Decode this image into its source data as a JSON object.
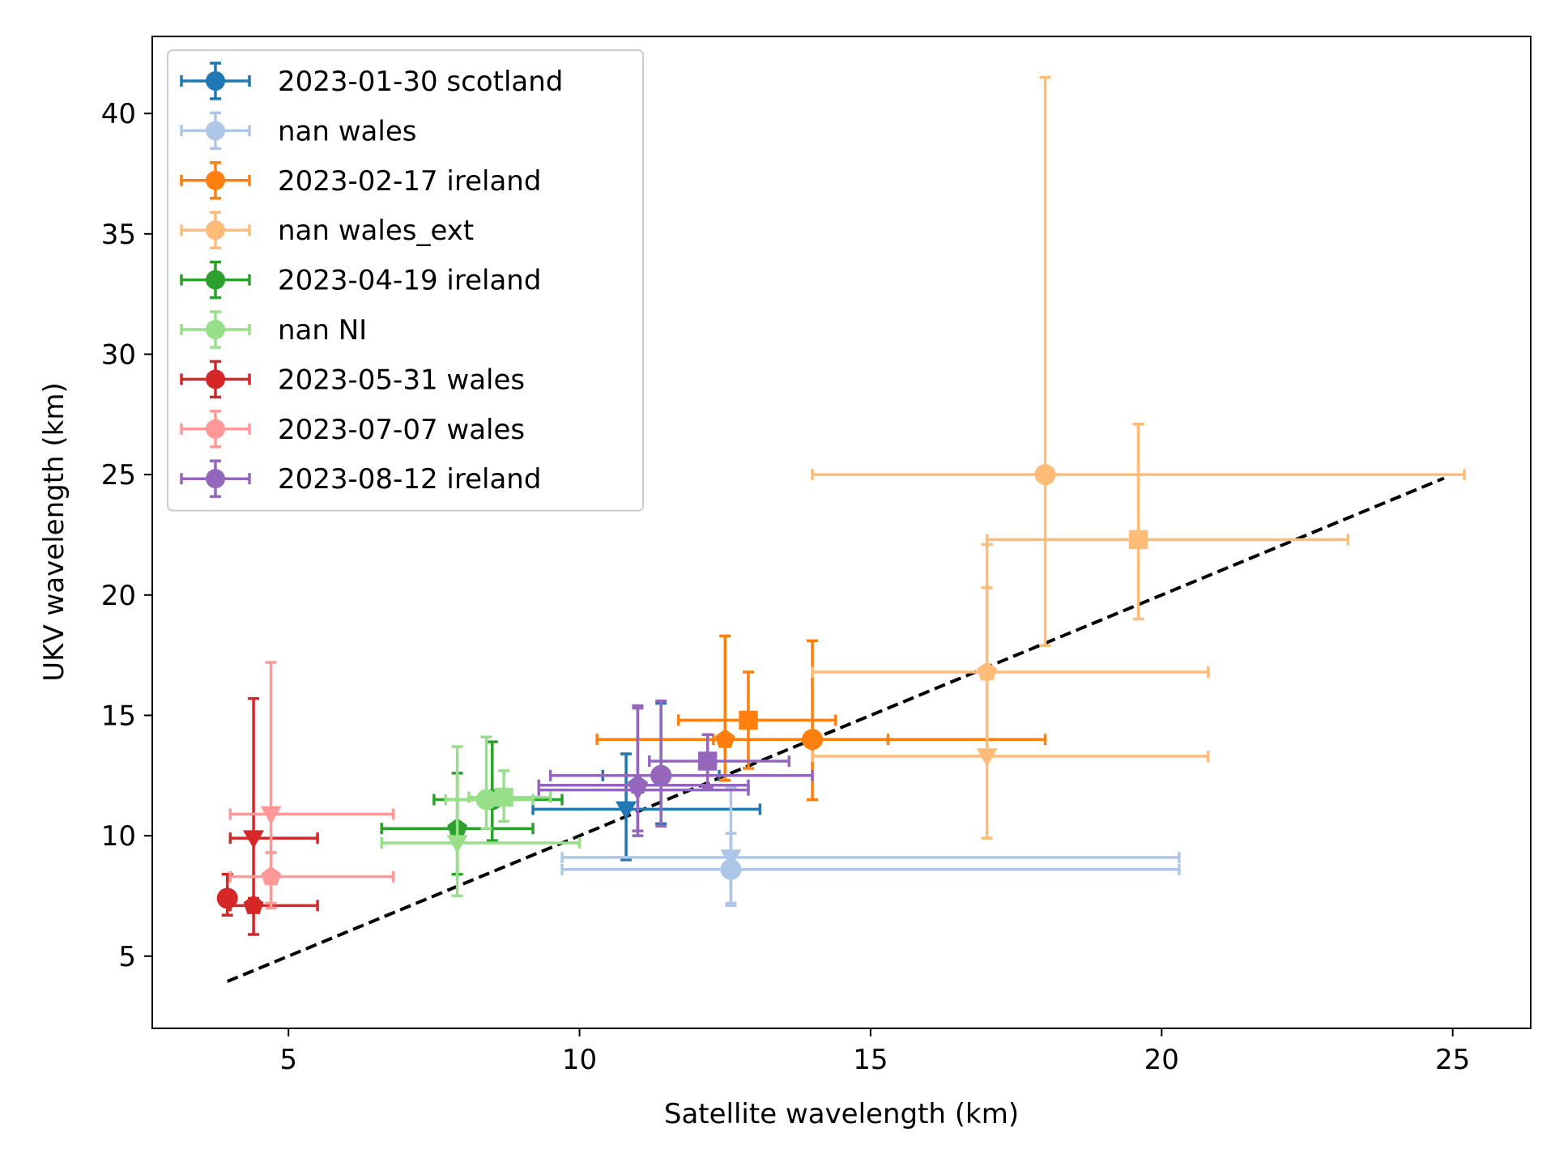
{
  "chart_data": {
    "type": "scatter",
    "title": "",
    "xlabel": "Satellite wavelength (km)",
    "ylabel": "UKV wavelength (km)",
    "xlim": [
      2.66,
      26.34
    ],
    "ylim": [
      2.0,
      43.2
    ],
    "xticks": [
      5,
      10,
      15,
      20,
      25
    ],
    "yticks": [
      5,
      10,
      15,
      20,
      25,
      30,
      35,
      40
    ],
    "grid": false,
    "legend_position": "top-left",
    "reference_line": {
      "style": "dashed",
      "color": "#000000",
      "x": [
        3.95,
        24.85
      ],
      "y": [
        3.95,
        24.85
      ]
    },
    "series": [
      {
        "name": "2023-01-30 scotland",
        "color": "#1f77b4",
        "points": [
          {
            "x": 11.4,
            "y": 12.5,
            "xerr": [
              1.0,
              1.0
            ],
            "yerr": [
              2.0,
              3.0
            ],
            "marker": "circle"
          },
          {
            "x": 10.8,
            "y": 11.1,
            "xerr": [
              1.6,
              2.3
            ],
            "yerr": [
              2.1,
              2.3
            ],
            "marker": "triangle-down"
          }
        ]
      },
      {
        "name": "nan wales",
        "color": "#aec7e8",
        "points": [
          {
            "x": 12.6,
            "y": 8.6,
            "xerr": [
              2.9,
              7.7
            ],
            "yerr": [
              1.5,
              1.5
            ],
            "marker": "circle"
          },
          {
            "x": 12.6,
            "y": 9.1,
            "xerr": [
              2.9,
              7.7
            ],
            "yerr": [
              1.9,
              2.9
            ],
            "marker": "triangle-down"
          }
        ]
      },
      {
        "name": "2023-02-17 ireland",
        "color": "#ff7f0e",
        "points": [
          {
            "x": 14.0,
            "y": 14.0,
            "xerr": [
              1.7,
              4.0
            ],
            "yerr": [
              2.5,
              4.1
            ],
            "marker": "circle"
          },
          {
            "x": 12.5,
            "y": 14.0,
            "xerr": [
              2.2,
              2.8
            ],
            "yerr": [
              1.7,
              4.3
            ],
            "marker": "pentagon"
          },
          {
            "x": 12.9,
            "y": 14.8,
            "xerr": [
              1.2,
              1.5
            ],
            "yerr": [
              2.0,
              2.0
            ],
            "marker": "square"
          }
        ]
      },
      {
        "name": "nan wales_ext",
        "color": "#ffbb78",
        "points": [
          {
            "x": 18.0,
            "y": 25.0,
            "xerr": [
              4.0,
              7.2
            ],
            "yerr": [
              7.1,
              16.5
            ],
            "marker": "circle"
          },
          {
            "x": 19.6,
            "y": 22.3,
            "xerr": [
              2.6,
              3.6
            ],
            "yerr": [
              3.3,
              4.8
            ],
            "marker": "square"
          },
          {
            "x": 17.0,
            "y": 16.8,
            "xerr": [
              3.0,
              3.8
            ],
            "yerr": [
              3.5,
              3.5
            ],
            "marker": "pentagon"
          },
          {
            "x": 17.0,
            "y": 13.3,
            "xerr": [
              3.0,
              3.8
            ],
            "yerr": [
              3.4,
              8.8
            ],
            "marker": "triangle-down"
          }
        ]
      },
      {
        "name": "2023-04-19 ireland",
        "color": "#2ca02c",
        "points": [
          {
            "x": 7.9,
            "y": 10.3,
            "xerr": [
              1.3,
              1.3
            ],
            "yerr": [
              1.9,
              2.3
            ],
            "marker": "pentagon"
          },
          {
            "x": 8.5,
            "y": 11.5,
            "xerr": [
              1.0,
              1.2
            ],
            "yerr": [
              1.7,
              2.4
            ],
            "marker": "circle"
          }
        ]
      },
      {
        "name": "nan NI",
        "color": "#98df8a",
        "points": [
          {
            "x": 7.9,
            "y": 9.7,
            "xerr": [
              1.3,
              2.1
            ],
            "yerr": [
              2.2,
              4.0
            ],
            "marker": "triangle-down"
          },
          {
            "x": 8.4,
            "y": 11.5,
            "xerr": [
              0.7,
              0.8
            ],
            "yerr": [
              1.2,
              2.6
            ],
            "marker": "circle"
          },
          {
            "x": 8.7,
            "y": 11.6,
            "xerr": [
              0.6,
              0.8
            ],
            "yerr": [
              1.0,
              1.1
            ],
            "marker": "square"
          }
        ]
      },
      {
        "name": "2023-05-31 wales",
        "color": "#d62728",
        "points": [
          {
            "x": 3.95,
            "y": 7.4,
            "xerr": [
              0.05,
              0.05
            ],
            "yerr": [
              0.7,
              1.0
            ],
            "marker": "circle"
          },
          {
            "x": 4.4,
            "y": 7.1,
            "xerr": [
              0.4,
              1.1
            ],
            "yerr": [
              1.2,
              0.3
            ],
            "marker": "pentagon"
          },
          {
            "x": 4.4,
            "y": 9.9,
            "xerr": [
              0.4,
              1.1
            ],
            "yerr": [
              2.7,
              5.8
            ],
            "marker": "triangle-down"
          }
        ]
      },
      {
        "name": "2023-07-07 wales",
        "color": "#ff9896",
        "points": [
          {
            "x": 4.7,
            "y": 8.3,
            "xerr": [
              0.7,
              2.1
            ],
            "yerr": [
              1.1,
              1.0
            ],
            "marker": "pentagon"
          },
          {
            "x": 4.7,
            "y": 10.9,
            "xerr": [
              0.7,
              2.1
            ],
            "yerr": [
              3.9,
              6.3
            ],
            "marker": "triangle-down"
          }
        ]
      },
      {
        "name": "2023-08-12 ireland",
        "color": "#9467bd",
        "points": [
          {
            "x": 11.4,
            "y": 12.5,
            "xerr": [
              1.9,
              2.6
            ],
            "yerr": [
              2.1,
              3.1
            ],
            "marker": "circle"
          },
          {
            "x": 12.2,
            "y": 13.1,
            "xerr": [
              1.0,
              1.4
            ],
            "yerr": [
              1.1,
              1.1
            ],
            "marker": "square"
          },
          {
            "x": 11.0,
            "y": 12.1,
            "xerr": [
              1.7,
              1.9
            ],
            "yerr": [
              1.9,
              3.2
            ],
            "marker": "pentagon"
          },
          {
            "x": 11.0,
            "y": 11.9,
            "xerr": [
              1.7,
              1.9
            ],
            "yerr": [
              1.9,
              3.5
            ],
            "marker": "triangle-down"
          }
        ]
      }
    ]
  }
}
